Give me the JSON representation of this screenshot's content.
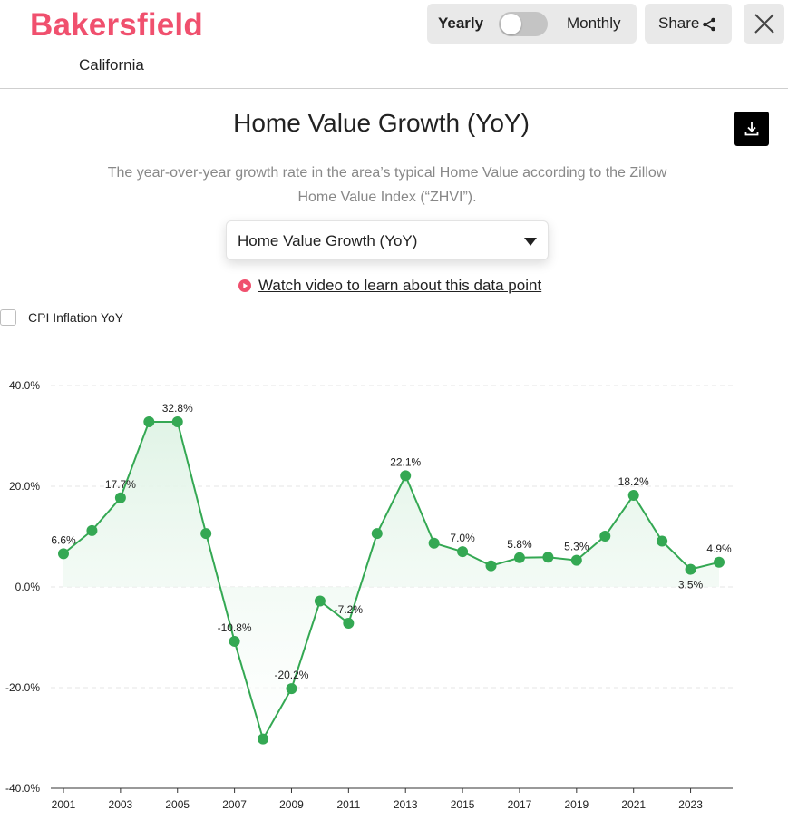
{
  "header": {
    "city": "Bakersfield",
    "state": "California",
    "toggle": {
      "left_label": "Yearly",
      "right_label": "Monthly",
      "state": "Yearly"
    },
    "share_label": "Share"
  },
  "chart_section": {
    "title": "Home Value Growth (YoY)",
    "description": "The year-over-year growth rate in the area’s typical Home Value according to the Zillow Home Value Index (“ZHVI”).",
    "selected_metric": "Home Value Growth (YoY)",
    "video_link": "Watch video to learn about this data point",
    "cpi_toggle_label": "CPI Inflation YoY",
    "cpi_checked": false
  },
  "colors": {
    "brand": "#f0506e",
    "series": "#34a853",
    "fill": "#eaf7ee"
  },
  "icons": {
    "share": "share-icon",
    "close": "close-icon",
    "download": "download-icon",
    "dropdown": "caret-down-icon",
    "video": "play-circle-icon"
  },
  "chart_data": {
    "type": "line",
    "title": "",
    "xlabel": "",
    "ylabel": "",
    "x": [
      2001,
      2002,
      2003,
      2004,
      2005,
      2006,
      2007,
      2008,
      2009,
      2010,
      2011,
      2012,
      2013,
      2014,
      2015,
      2016,
      2017,
      2018,
      2019,
      2020,
      2021,
      2022,
      2023,
      2024
    ],
    "series": [
      {
        "name": "",
        "values": [
          6.6,
          11.2,
          17.7,
          32.8,
          32.8,
          10.6,
          -10.8,
          -30.2,
          -20.2,
          -2.8,
          -7.2,
          10.6,
          22.1,
          8.7,
          7.0,
          4.2,
          5.8,
          5.9,
          5.3,
          10.1,
          18.2,
          9.1,
          3.5,
          4.9
        ]
      }
    ],
    "data_labels": [
      {
        "x": 2001,
        "text": "6.6%",
        "position": "above"
      },
      {
        "x": 2003,
        "text": "17.7%",
        "position": "above"
      },
      {
        "x": 2005,
        "text": "32.8%",
        "position": "above"
      },
      {
        "x": 2007,
        "text": "-10.8%",
        "position": "above"
      },
      {
        "x": 2009,
        "text": "-20.2%",
        "position": "above"
      },
      {
        "x": 2011,
        "text": "-7.2%",
        "position": "above"
      },
      {
        "x": 2013,
        "text": "22.1%",
        "position": "above"
      },
      {
        "x": 2015,
        "text": "7.0%",
        "position": "above"
      },
      {
        "x": 2017,
        "text": "5.8%",
        "position": "above"
      },
      {
        "x": 2019,
        "text": "5.3%",
        "position": "above"
      },
      {
        "x": 2021,
        "text": "18.2%",
        "position": "above"
      },
      {
        "x": 2023,
        "text": "3.5%",
        "position": "below"
      },
      {
        "x": 2024,
        "text": "4.9%",
        "position": "above"
      }
    ],
    "y_ticks": [
      40,
      20,
      0,
      -20,
      -40
    ],
    "y_tick_labels": [
      "40.0%",
      "20.0%",
      "0.0%",
      "-20.0%",
      "-40.0%"
    ],
    "x_ticks": [
      2001,
      2003,
      2005,
      2007,
      2009,
      2011,
      2013,
      2015,
      2017,
      2019,
      2021,
      2023
    ],
    "x_tick_labels": [
      "2001",
      "2003",
      "2005",
      "2007",
      "2009",
      "2011",
      "2013",
      "2015",
      "2017",
      "2019",
      "2021",
      "2023"
    ],
    "ylim": [
      -40,
      40
    ],
    "grid": true,
    "legend": "none"
  }
}
